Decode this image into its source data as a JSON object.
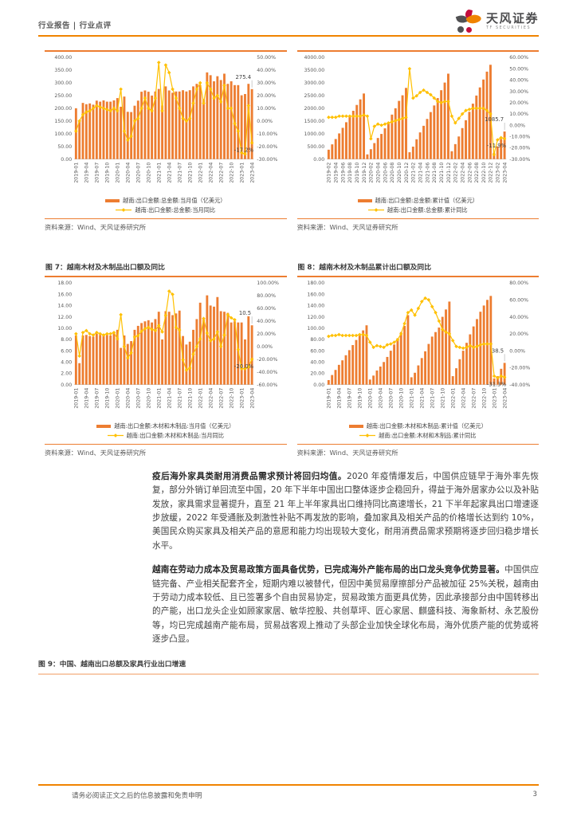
{
  "header": {
    "breadcrumb": "行业报告 | 行业点评",
    "logo_cn": "天风证券",
    "logo_en": "TF SECURITIES"
  },
  "footer": {
    "disclaimer": "请务必阅读正文之后的信息披露和免责申明",
    "page_number": "3"
  },
  "source_label": "资料来源：Wind、天风证券研究所",
  "colors": {
    "accent": "#F08300",
    "bar": "#ED7D31",
    "line": "#FFC000",
    "figure_rule": "#ED7D31",
    "fig9_rule": "#F8CBAD"
  },
  "paragraphs": [
    {
      "bold": "疫后海外家具类耐用消费品需求预计将回归均值。",
      "text": "2020 年疫情爆发后，中国供应链早于海外率先恢复，部分外销订单回流至中国，20 年下半年中国出口整体逐步企稳回升，得益于海外居家办公以及补贴发放，家具需求显著提升，直至 21 年上半年家具出口维持同比高速增长，21 下半年起家具出口增速逐步放缓，2022 年受通胀及刺激性补贴不再发放的影响，叠加家具及相关产品的价格增长达到约 10%，美国民众购买家具及相关产品的意愿和能力均出现较大变化，耐用消费品需求预期将逐步回归稳步增长水平。"
    },
    {
      "bold": "越南在劳动力成本及贸易政策方面具备优势，已完成海外产能布局的出口龙头竞争优势显著。",
      "text": "中国供应链完备、产业相关配套齐全，短期内难以被替代，但因中美贸易摩擦部分产品被加征 25%关税，越南由于劳动力成本较低、且已签署多个自由贸易协定，贸易政策方面更具优势，因此承接部分由中国转移出的产能，出口龙头企业如顾家家居、敏华控股、共创草坪、匠心家居、麒盛科技、海象新材、永艺股份等，均已完成越南产能布局，贸易战客观上推动了头部企业加快全球化布局，海外优质产能的优势或将逐步凸显。"
    }
  ],
  "figure9": {
    "title": "图 9：中国、越南出口总额及家具行业出口增速"
  },
  "chart_data": [
    {
      "type": "bar",
      "title": "",
      "categories": [
        "2019-01",
        "2019-02",
        "2019-03",
        "2019-04",
        "2019-05",
        "2019-06",
        "2019-07",
        "2019-08",
        "2019-09",
        "2019-10",
        "2019-11",
        "2019-12",
        "2020-01",
        "2020-02",
        "2020-03",
        "2020-04",
        "2020-05",
        "2020-06",
        "2020-07",
        "2020-08",
        "2020-09",
        "2020-10",
        "2020-11",
        "2020-12",
        "2021-01",
        "2021-02",
        "2021-03",
        "2021-04",
        "2021-05",
        "2021-06",
        "2021-07",
        "2021-08",
        "2021-09",
        "2021-10",
        "2021-11",
        "2021-12",
        "2022-01",
        "2022-02",
        "2022-03",
        "2022-04",
        "2022-05",
        "2022-06",
        "2022-07",
        "2022-08",
        "2022-09",
        "2022-10",
        "2022-11",
        "2022-12",
        "2023-01",
        "2023-02",
        "2023-03",
        "2023-04"
      ],
      "tick_every": 3,
      "series": [
        {
          "name": "越南:出口金额:总金额:当月值（亿美元）",
          "kind": "bar",
          "axis": "left",
          "values": [
            200,
            150,
            221,
            216,
            219,
            214,
            230,
            226,
            231,
            226,
            226,
            231,
            240,
            206,
            246,
            186,
            185,
            210,
            230,
            265,
            270,
            265,
            250,
            266,
            276,
            211,
            286,
            270,
            261,
            266,
            266,
            271,
            266,
            271,
            286,
            296,
            291,
            236,
            341,
            330,
            306,
            326,
            311,
            336,
            296,
            306,
            291,
            291,
            251,
            256,
            296,
            275.4
          ]
        },
        {
          "name": "越南:出口金额:总金额:当月同比",
          "kind": "line",
          "axis": "right",
          "values": [
            -8,
            0,
            5,
            7,
            8,
            10,
            12,
            11,
            10,
            9,
            8,
            10,
            8,
            25,
            -8,
            -15,
            -12,
            0,
            2,
            10,
            18,
            10,
            8,
            18,
            46,
            8,
            44,
            38,
            25,
            18,
            10,
            2,
            0,
            2,
            14,
            25,
            30,
            14,
            30,
            25,
            18,
            20,
            15,
            28,
            10,
            10,
            -2,
            -8,
            -25,
            -26,
            12,
            -17.2
          ]
        }
      ],
      "left_axis": {
        "min": 0,
        "max": 400,
        "step": 50
      },
      "right_axis": {
        "min": -30,
        "max": 50,
        "step": 10,
        "unit": "%"
      },
      "annotations": [
        {
          "target": "bar",
          "text": "275.4"
        },
        {
          "target": "line",
          "text": "-17.2%"
        }
      ]
    },
    {
      "type": "bar",
      "title": "",
      "categories": [
        "2019-02",
        "2019-03",
        "2019-04",
        "2019-05",
        "2019-06",
        "2019-07",
        "2019-08",
        "2019-09",
        "2019-10",
        "2019-11",
        "2019-12",
        "2020-01",
        "2020-02",
        "2020-03",
        "2020-04",
        "2020-05",
        "2020-06",
        "2020-07",
        "2020-08",
        "2020-09",
        "2020-10",
        "2020-11",
        "2020-12",
        "2021-01",
        "2021-02",
        "2021-03",
        "2021-04",
        "2021-05",
        "2021-06",
        "2021-07",
        "2021-08",
        "2021-09",
        "2021-10",
        "2021-11",
        "2021-12",
        "2022-01",
        "2022-02",
        "2022-03",
        "2022-04",
        "2022-05",
        "2022-06",
        "2022-07",
        "2022-08",
        "2022-09",
        "2022-10",
        "2022-11",
        "2022-12",
        "2023-01",
        "2023-02",
        "2023-03",
        "2023-04"
      ],
      "tick_every": 2,
      "series": [
        {
          "name": "越南:出口金额:总金额:累计值（亿美元）",
          "kind": "bar",
          "axis": "left",
          "values": [
            370,
            580,
            790,
            1010,
            1230,
            1450,
            1680,
            1900,
            2130,
            2350,
            2580,
            185,
            390,
            630,
            830,
            990,
            1210,
            1450,
            1750,
            2000,
            2290,
            2510,
            2800,
            270,
            490,
            780,
            1050,
            1310,
            1580,
            1850,
            2110,
            2400,
            2710,
            3010,
            3360,
            310,
            590,
            890,
            1220,
            1530,
            1860,
            2180,
            2500,
            2820,
            3130,
            3440,
            3710,
            250,
            500,
            790,
            1085.7
          ]
        },
        {
          "name": "越南:出口金额:总金额:累计同比",
          "kind": "line",
          "axis": "right",
          "values": [
            7,
            7,
            7,
            8,
            8,
            8,
            8,
            8,
            8,
            8,
            9,
            8,
            -12,
            -1,
            1,
            0,
            1,
            2,
            3,
            4,
            5,
            6,
            7,
            50,
            24,
            26,
            29,
            31,
            29,
            27,
            24,
            21,
            20,
            21,
            21,
            8,
            2,
            6,
            10,
            13,
            14,
            15,
            15,
            15,
            15,
            13,
            10,
            -26,
            -13,
            -11,
            -11.9
          ]
        }
      ],
      "left_axis": {
        "min": 0,
        "max": 4000,
        "step": 500
      },
      "right_axis": {
        "min": -30,
        "max": 60,
        "step": 10,
        "unit": "%"
      },
      "annotations": [
        {
          "target": "bar",
          "text": "1085.7"
        },
        {
          "target": "line",
          "text": "-11.9%"
        }
      ]
    },
    {
      "type": "bar",
      "title": "图 7：越南木材及木制品出口额及同比",
      "categories": [
        "2019-01",
        "2019-02",
        "2019-03",
        "2019-04",
        "2019-05",
        "2019-06",
        "2019-07",
        "2019-08",
        "2019-09",
        "2019-10",
        "2019-11",
        "2019-12",
        "2020-01",
        "2020-02",
        "2020-03",
        "2020-04",
        "2020-05",
        "2020-06",
        "2020-07",
        "2020-08",
        "2020-09",
        "2020-10",
        "2020-11",
        "2020-12",
        "2021-01",
        "2021-02",
        "2021-03",
        "2021-04",
        "2021-05",
        "2021-06",
        "2021-07",
        "2021-08",
        "2021-09",
        "2021-10",
        "2021-11",
        "2021-12",
        "2022-01",
        "2022-02",
        "2022-03",
        "2022-04",
        "2022-05",
        "2022-06",
        "2022-07",
        "2022-08",
        "2022-09",
        "2022-10",
        "2022-11",
        "2022-12",
        "2023-01",
        "2023-02",
        "2023-03",
        "2023-04"
      ],
      "tick_every": 3,
      "series": [
        {
          "name": "越南:出口金额:木材和木制品:当月值（亿美元）",
          "kind": "bar",
          "axis": "left",
          "values": [
            8.7,
            3.8,
            8.7,
            8.8,
            8.6,
            8.5,
            9.0,
            8.8,
            8.7,
            8.8,
            8.7,
            9.3,
            9.7,
            6.5,
            8.7,
            7.2,
            7.7,
            9.7,
            10.4,
            10.9,
            11.2,
            11.4,
            11.0,
            11.6,
            12.9,
            8.0,
            13.0,
            12.9,
            12.3,
            12.6,
            13.1,
            8.6,
            7.1,
            7.6,
            9.7,
            11.6,
            14.5,
            11.5,
            15.8,
            14.0,
            13.8,
            15.5,
            13.0,
            12.9,
            12.7,
            11.0,
            11.2,
            11.0,
            11.0,
            8.0,
            12.1,
            10.5
          ]
        },
        {
          "name": "越南:出口金额:木材和木制品:当月同比",
          "kind": "line",
          "axis": "right",
          "values": [
            20,
            -15,
            22,
            25,
            20,
            18,
            22,
            20,
            18,
            20,
            20,
            22,
            12,
            50,
            0,
            -18,
            -10,
            15,
            17,
            24,
            28,
            30,
            27,
            25,
            33,
            23,
            49,
            87,
            82,
            30,
            26,
            -21,
            -37,
            -34,
            -12,
            0,
            12,
            44,
            21,
            9,
            12,
            23,
            0,
            18,
            50,
            45,
            42,
            -5,
            -35,
            -35,
            -32,
            -20
          ]
        }
      ],
      "left_axis": {
        "min": 0,
        "max": 18,
        "step": 2
      },
      "right_axis": {
        "min": -60,
        "max": 100,
        "step": 20,
        "unit": "%"
      },
      "annotations": [
        {
          "target": "bar",
          "text": "10.5"
        },
        {
          "target": "line",
          "text": "-20.0%"
        }
      ]
    },
    {
      "type": "bar",
      "title": "图 8：越南木材及木制品累计出口额及同比",
      "categories": [
        "2019-01",
        "2019-02",
        "2019-03",
        "2019-04",
        "2019-05",
        "2019-06",
        "2019-07",
        "2019-08",
        "2019-09",
        "2019-10",
        "2019-11",
        "2019-12",
        "2020-01",
        "2020-02",
        "2020-03",
        "2020-04",
        "2020-05",
        "2020-06",
        "2020-07",
        "2020-08",
        "2020-09",
        "2020-10",
        "2020-11",
        "2020-12",
        "2021-01",
        "2021-02",
        "2021-03",
        "2021-04",
        "2021-05",
        "2021-06",
        "2021-07",
        "2021-08",
        "2021-09",
        "2021-10",
        "2021-11",
        "2021-12",
        "2022-01",
        "2022-02",
        "2022-03",
        "2022-04",
        "2022-05",
        "2022-06",
        "2022-07",
        "2022-08",
        "2022-09",
        "2022-10",
        "2022-11",
        "2022-12",
        "2023-01",
        "2023-02",
        "2023-03",
        "2023-04"
      ],
      "tick_every": 3,
      "series": [
        {
          "name": "越南:出口金额:木材和木制品:累计值（亿美元）",
          "kind": "bar",
          "axis": "left",
          "values": [
            8,
            17,
            26,
            35,
            43,
            52,
            61,
            70,
            79,
            88,
            96,
            105,
            9,
            16,
            25,
            32,
            40,
            49,
            60,
            71,
            82,
            93,
            104,
            123,
            13,
            21,
            34,
            47,
            59,
            72,
            85,
            93,
            101,
            120,
            133,
            147,
            15,
            29,
            45,
            60,
            74,
            89,
            103,
            116,
            129,
            140,
            150,
            157,
            11,
            15,
            28,
            38.5
          ]
        },
        {
          "name": "越南:出口金额:木材和木制品:累计同比",
          "kind": "line",
          "axis": "right",
          "values": [
            17,
            18,
            18,
            19,
            18,
            18,
            18,
            18,
            18,
            19,
            19,
            18,
            10,
            4,
            6,
            5,
            4,
            7,
            8,
            10,
            13,
            20,
            32,
            45,
            48,
            42,
            50,
            58,
            62,
            60,
            52,
            45,
            35,
            25,
            22,
            20,
            12,
            5,
            4,
            3,
            4,
            6,
            4,
            5,
            7,
            8,
            8,
            8,
            -30,
            -32,
            -30,
            -31.3
          ]
        }
      ],
      "left_axis": {
        "min": 0,
        "max": 180,
        "step": 20
      },
      "right_axis": {
        "min": -40,
        "max": 80,
        "step": 20,
        "unit": "%"
      },
      "annotations": [
        {
          "target": "bar",
          "text": "38.5"
        },
        {
          "target": "line",
          "text": "-31.3%"
        }
      ]
    }
  ]
}
